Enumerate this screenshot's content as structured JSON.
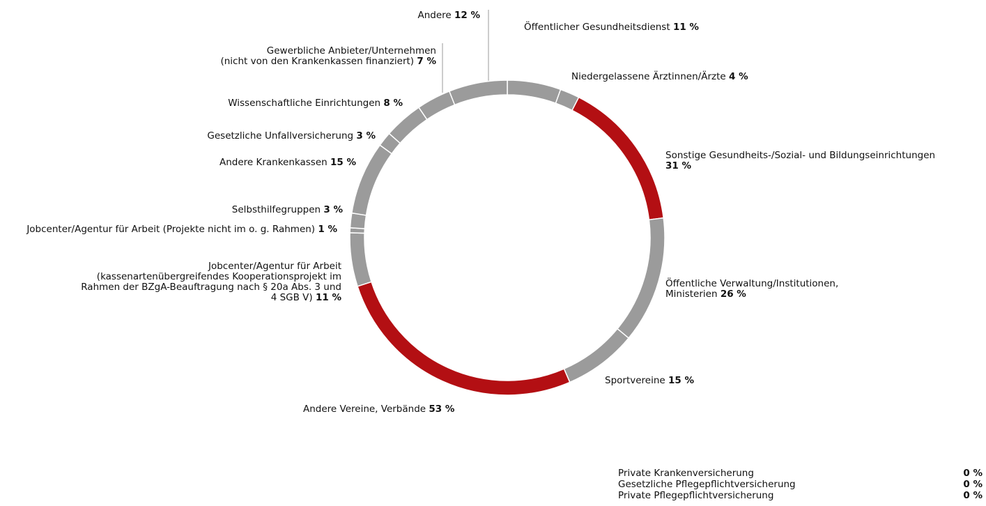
{
  "chart_data": {
    "type": "donut",
    "categories": [
      "Öffentlicher Gesundheitsdienst",
      "Niedergelassene Ärztinnen/Ärzte",
      "Sonstige Gesundheits-/Sozial- und Bildungseinrichtungen",
      "Öffentliche Verwaltung/Institutionen,\nMinisterien",
      "Sportvereine",
      "Andere Vereine, Verbände",
      "Jobcenter/Agentur für Arbeit\n(kassenartenübergreifendes Kooperationsprojekt im\nRahmen der BZgA-Beauftragung nach § 20a Abs. 3 und\n4 SGB V)",
      "Jobcenter/Agentur für Arbeit (Projekte nicht im o. g. Rahmen)",
      "Selbsthilfegruppen",
      "Andere Krankenkassen",
      "Gesetzliche Unfallversicherung",
      "Wissenschaftliche Einrichtungen",
      "Gewerbliche Anbieter/Unternehmen\n(nicht von den Krankenkassen finanziert)",
      "Andere"
    ],
    "values": [
      11,
      4,
      31,
      26,
      15,
      53,
      11,
      1,
      3,
      15,
      3,
      8,
      7,
      12
    ],
    "value_labels": [
      "11 %",
      "4 %",
      "31 %",
      "26 %",
      "15 %",
      "53 %",
      "11 %",
      "1 %",
      "3 %",
      "15 %",
      "3 %",
      "8 %",
      "7 %",
      "12 %"
    ],
    "colors": [
      "#9b9b9b",
      "#9b9b9b",
      "#b30f13",
      "#9b9b9b",
      "#9b9b9b",
      "#b30f13",
      "#9b9b9b",
      "#9b9b9b",
      "#9b9b9b",
      "#9b9b9b",
      "#9b9b9b",
      "#9b9b9b",
      "#9b9b9b",
      "#9b9b9b"
    ],
    "zero_categories": [
      "Private Krankenversicherung",
      "Gesetzliche Pflegepflichtversicherung",
      "Private Pflegepflichtversicherung"
    ],
    "zero_values": [
      0,
      0,
      0
    ],
    "zero_value_labels": [
      "0 %",
      "0 %",
      "0 %"
    ]
  }
}
